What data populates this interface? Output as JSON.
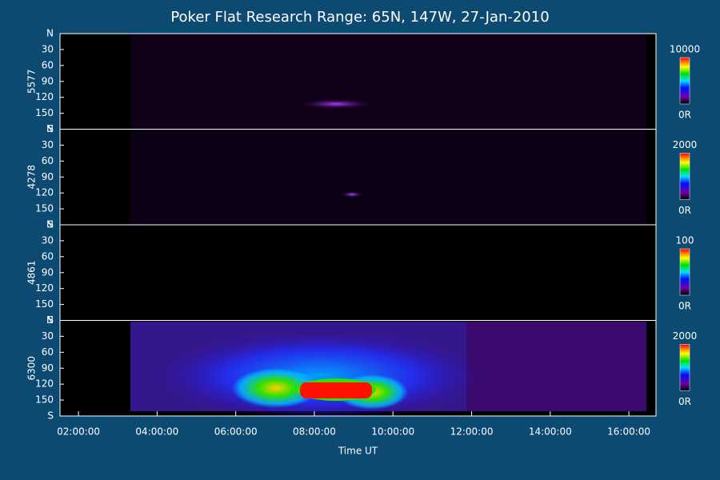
{
  "title": "Poker Flat Research Range: 65N, 147W, 27-Jan-2010",
  "chart_data": [
    {
      "type": "heatmap",
      "ylabel": "5577",
      "ylim": [
        180,
        0
      ],
      "yticks": [
        {
          "value": 0,
          "label": "N"
        },
        30,
        60,
        90,
        120,
        150,
        {
          "value": 180,
          "label": "S"
        }
      ],
      "colorbar": {
        "lim": [
          0,
          10000
        ],
        "ticks": [
          {
            "value": 0,
            "label": "0R"
          },
          10000
        ]
      }
    },
    {
      "type": "heatmap",
      "ylabel": "4278",
      "ylim": [
        180,
        0
      ],
      "yticks": [
        {
          "value": 0,
          "label": "N"
        },
        30,
        60,
        90,
        120,
        150,
        {
          "value": 180,
          "label": "S"
        }
      ],
      "colorbar": {
        "lim": [
          0,
          2000
        ],
        "ticks": [
          {
            "value": 0,
            "label": "0R"
          },
          2000
        ]
      }
    },
    {
      "type": "heatmap",
      "ylabel": "4861",
      "ylim": [
        180,
        0
      ],
      "yticks": [
        {
          "value": 0,
          "label": "N"
        },
        30,
        60,
        90,
        120,
        150,
        {
          "value": 180,
          "label": "S"
        }
      ],
      "colorbar": {
        "lim": [
          0,
          100
        ],
        "ticks": [
          {
            "value": 0,
            "label": "0R"
          },
          100
        ]
      }
    },
    {
      "type": "heatmap",
      "ylabel": "6300",
      "ylim": [
        180,
        0
      ],
      "yticks": [
        {
          "value": 0,
          "label": "N"
        },
        30,
        60,
        90,
        120,
        150,
        {
          "value": 180,
          "label": "S"
        }
      ],
      "colorbar": {
        "lim": [
          0,
          2000
        ],
        "ticks": [
          {
            "value": 0,
            "label": "0R"
          },
          2000
        ]
      },
      "xlabel": "Time UT",
      "xlim": [
        1.53,
        16.69
      ],
      "xticks": [
        {
          "value": 2,
          "label": "02:00:00"
        },
        {
          "value": 4,
          "label": "04:00:00"
        },
        {
          "value": 6,
          "label": "06:00:00"
        },
        {
          "value": 8,
          "label": "08:00:00"
        },
        {
          "value": 10,
          "label": "10:00:00"
        },
        {
          "value": 12,
          "label": "12:00:00"
        },
        {
          "value": 14,
          "label": "14:00:00"
        },
        {
          "value": 16,
          "label": "16:00:00"
        }
      ]
    }
  ]
}
